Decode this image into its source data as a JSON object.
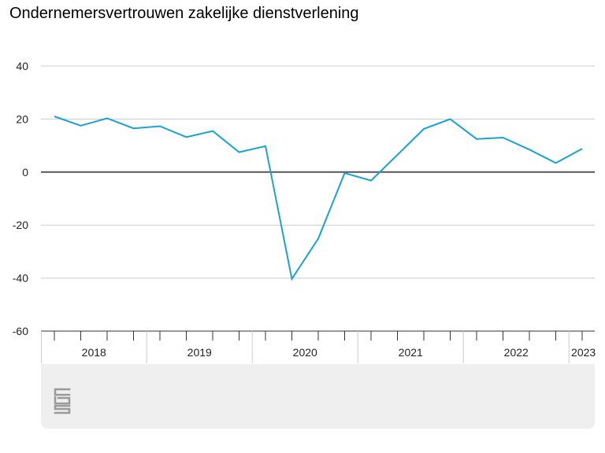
{
  "title": "Ondernemersvertrouwen zakelijke dienstverlening",
  "colors": {
    "line": "#1aa3cf",
    "gridline": "#cccccc",
    "zeroline": "#555555",
    "axis": "#333333",
    "footer_bg": "#efefef",
    "logo": "#9a9a9a"
  },
  "footer": {
    "logo_icon": "cbs-logo-icon"
  },
  "chart_data": {
    "type": "line",
    "title": "Ondernemersvertrouwen zakelijke dienstverlening",
    "xlabel": "",
    "ylabel": "",
    "ylim": [
      -60,
      40
    ],
    "yticks": [
      -60,
      -40,
      -20,
      0,
      20,
      40
    ],
    "grid": true,
    "legend": "none",
    "x_groups": [
      {
        "label": "2018",
        "quarters": 4
      },
      {
        "label": "2019",
        "quarters": 4
      },
      {
        "label": "2020",
        "quarters": 4
      },
      {
        "label": "2021",
        "quarters": 4
      },
      {
        "label": "2022",
        "quarters": 4
      },
      {
        "label": "2023",
        "quarters": 1
      }
    ],
    "series": [
      {
        "x": [
          "2018 Q1",
          "2018 Q2",
          "2018 Q3",
          "2018 Q4",
          "2019 Q1",
          "2019 Q2",
          "2019 Q3",
          "2019 Q4",
          "2020 Q1",
          "2020 Q2",
          "2020 Q3",
          "2020 Q4",
          "2021 Q1",
          "2021 Q2",
          "2021 Q3",
          "2021 Q4",
          "2022 Q1",
          "2022 Q2",
          "2022 Q3",
          "2022 Q4",
          "2023 Q1"
        ],
        "values": [
          21,
          17.5,
          20.3,
          16.5,
          17.3,
          13.2,
          15.5,
          7.5,
          9.8,
          -40.3,
          -25.1,
          -0.4,
          -3.2,
          6.5,
          16.3,
          20,
          12.5,
          13,
          8.5,
          3.4,
          8.8
        ]
      }
    ]
  }
}
